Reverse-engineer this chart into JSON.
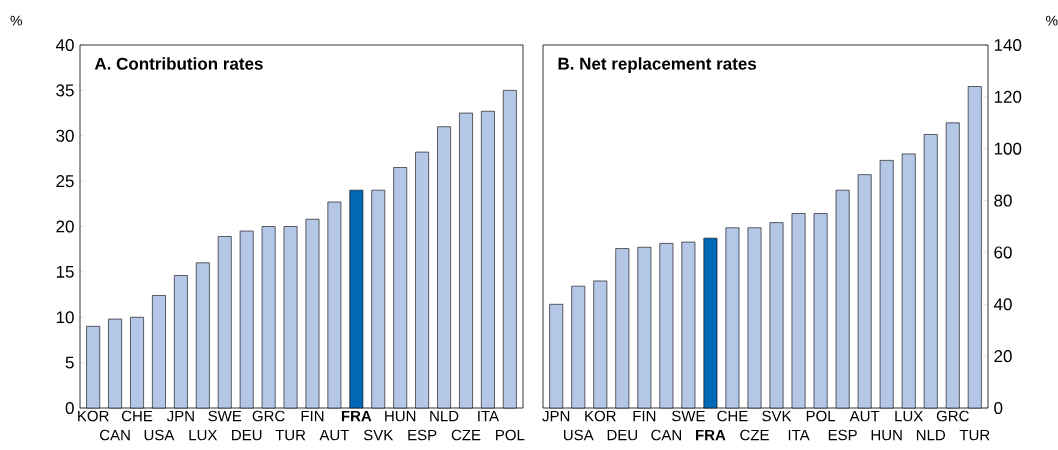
{
  "chart_data": [
    {
      "type": "bar",
      "title": "A. Contribution rates",
      "ylabel": "%",
      "categories": [
        "KOR",
        "CAN",
        "CHE",
        "USA",
        "JPN",
        "LUX",
        "SWE",
        "DEU",
        "GRC",
        "TUR",
        "FIN",
        "AUT",
        "**FRA**",
        "SVK",
        "HUN",
        "ESP",
        "NLD",
        "CZE",
        "ITA",
        "POL"
      ],
      "values": [
        9,
        9.8,
        10,
        12.4,
        14.6,
        16,
        18.9,
        19.5,
        20,
        20,
        20.8,
        22.7,
        24,
        24,
        26.5,
        28.2,
        31,
        32.5,
        32.7,
        35
      ],
      "colors": [
        "#b4c7e7",
        "#b4c7e7",
        "#b4c7e7",
        "#b4c7e7",
        "#b4c7e7",
        "#b4c7e7",
        "#b4c7e7",
        "#b4c7e7",
        "#b4c7e7",
        "#b4c7e7",
        "#b4c7e7",
        "#b4c7e7",
        "#0068b4",
        "#b4c7e7",
        "#b4c7e7",
        "#b4c7e7",
        "#b4c7e7",
        "#b4c7e7",
        "#b4c7e7",
        "#b4c7e7"
      ],
      "ylim": [
        0,
        40
      ],
      "yticks": [
        0,
        5,
        10,
        15,
        20,
        25,
        30,
        35,
        40
      ]
    },
    {
      "type": "bar",
      "title": "B. Net replacement rates",
      "y2label": "%",
      "categories": [
        "JPN",
        "USA",
        "KOR",
        "DEU",
        "FIN",
        "CAN",
        "SWE",
        "**FRA**",
        "CHE",
        "CZE",
        "SVK",
        "ITA",
        "POL",
        "ESP",
        "AUT",
        "HUN",
        "LUX",
        "NLD",
        "GRC",
        "TUR"
      ],
      "series": [
        {
          "axis": "y2",
          "values": [
            40,
            47,
            49,
            61.5,
            62,
            63.5,
            64,
            65.5,
            69.5,
            69.5,
            71.5,
            75,
            75,
            84,
            90,
            95.5,
            98,
            105.5,
            110,
            124
          ],
          "colors": [
            "#b4c7e7",
            "#b4c7e7",
            "#b4c7e7",
            "#b4c7e7",
            "#b4c7e7",
            "#b4c7e7",
            "#b4c7e7",
            "#0068b4",
            "#b4c7e7",
            "#b4c7e7",
            "#b4c7e7",
            "#b4c7e7",
            "#b4c7e7",
            "#b4c7e7",
            "#b4c7e7",
            "#b4c7e7",
            "#b4c7e7",
            "#b4c7e7",
            "#b4c7e7",
            "#b4c7e7"
          ]
        }
      ],
      "y2lim": [
        0,
        140
      ],
      "y2ticks": [
        0,
        20,
        40,
        60,
        80,
        100,
        120,
        140
      ]
    }
  ]
}
